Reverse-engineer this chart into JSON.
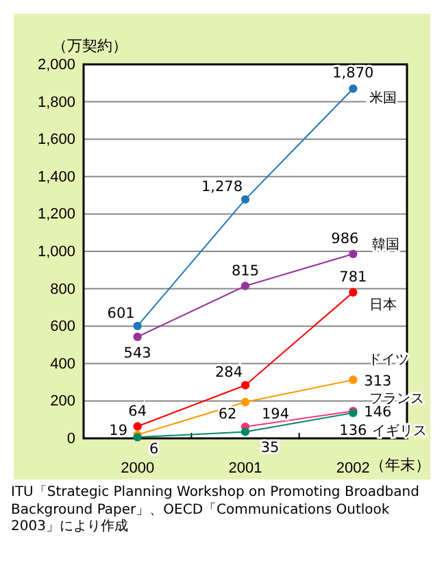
{
  "chart_data": {
    "type": "line",
    "ylabel": "（万契約）",
    "xlabel": "（年末）",
    "categories": [
      "2000",
      "2001",
      "2002"
    ],
    "ylim": [
      0,
      2000
    ],
    "yticks": [
      {
        "value": 0,
        "label": "0"
      },
      {
        "value": 200,
        "label": "200"
      },
      {
        "value": 400,
        "label": "400"
      },
      {
        "value": 600,
        "label": "600"
      },
      {
        "value": 800,
        "label": "800"
      },
      {
        "value": 1000,
        "label": "1,000"
      },
      {
        "value": 1200,
        "label": "1,200"
      },
      {
        "value": 1400,
        "label": "1,400"
      },
      {
        "value": 1600,
        "label": "1,600"
      },
      {
        "value": 1800,
        "label": "1,800"
      },
      {
        "value": 2000,
        "label": "2,000"
      }
    ],
    "grid": "y",
    "marker": "circle",
    "series": [
      {
        "name": "米国",
        "color": "#2277bb",
        "values": [
          601,
          1278,
          1870
        ],
        "value_labels": [
          "601",
          "1,278",
          "1,870"
        ]
      },
      {
        "name": "韓国",
        "color": "#993399",
        "values": [
          543,
          815,
          986
        ],
        "value_labels": [
          "543",
          "815",
          "986"
        ]
      },
      {
        "name": "日本",
        "color": "#ff0000",
        "values": [
          64,
          284,
          781
        ],
        "value_labels": [
          "64",
          "284",
          "781"
        ]
      },
      {
        "name": "ドイツ",
        "color": "#ff9900",
        "values": [
          19,
          194,
          313
        ],
        "value_labels": [
          "19",
          "194",
          "313"
        ]
      },
      {
        "name": "フランス",
        "color": "#ff3377",
        "values": [
          null,
          62,
          146
        ],
        "value_labels": [
          null,
          "62",
          "146"
        ]
      },
      {
        "name": "イギリス",
        "color": "#008866",
        "values": [
          6,
          35,
          136
        ],
        "value_labels": [
          "6",
          "35",
          "136"
        ]
      }
    ],
    "annotations": [
      "ITU「Strategic Planning Workshop on Promoting Broadband Background Paper」、OECD「Communications Outlook 2003」により作成"
    ]
  }
}
